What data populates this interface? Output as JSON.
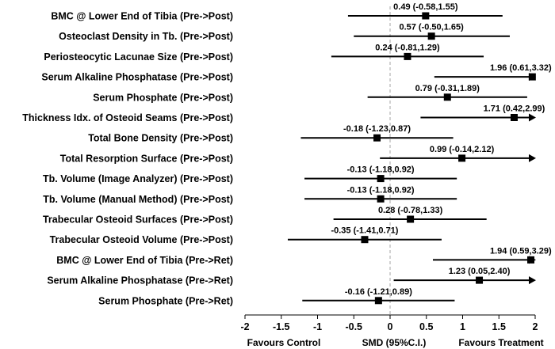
{
  "chart_data": {
    "type": "forest",
    "xlim": [
      -2,
      2
    ],
    "x_ticks": [
      -2,
      -1.5,
      -1,
      -0.5,
      0,
      0.5,
      1,
      1.5,
      2
    ],
    "tick_labels": [
      "-2",
      "-1.5",
      "-1",
      "-0.5",
      "0",
      "0.5",
      "1",
      "1.5",
      "2"
    ],
    "null_line": 0,
    "xlabel": "SMD (95%C.I.)",
    "left_caption": "Favours Control",
    "right_caption": "Favours Treatment",
    "rows": [
      {
        "label": "BMC @ Lower End of Tibia (Pre->Post)",
        "est": 0.49,
        "lo": -0.58,
        "hi": 1.55,
        "text": "0.49 (-0.58,1.55)",
        "arrow": false
      },
      {
        "label": "Osteoclast Density in Tb. (Pre->Post)",
        "est": 0.57,
        "lo": -0.5,
        "hi": 1.65,
        "text": "0.57 (-0.50,1.65)",
        "arrow": false
      },
      {
        "label": "Periosteocytic Lacunae Size (Pre->Post)",
        "est": 0.24,
        "lo": -0.81,
        "hi": 1.29,
        "text": "0.24 (-0.81,1.29)",
        "arrow": false
      },
      {
        "label": "Serum Alkaline Phosphatase (Pre->Post)",
        "est": 1.96,
        "lo": 0.61,
        "hi": 3.32,
        "text": "1.96 (0.61,3.32)",
        "arrow": true
      },
      {
        "label": "Serum Phosphate (Pre->Post)",
        "est": 0.79,
        "lo": -0.31,
        "hi": 1.89,
        "text": "0.79 (-0.31,1.89)",
        "arrow": false
      },
      {
        "label": "Thickness Idx. of Osteoid Seams (Pre->Post)",
        "est": 1.71,
        "lo": 0.42,
        "hi": 2.99,
        "text": "1.71 (0.42,2.99)",
        "arrow": true
      },
      {
        "label": "Total Bone Density (Pre->Post)",
        "est": -0.18,
        "lo": -1.23,
        "hi": 0.87,
        "text": "-0.18 (-1.23,0.87)",
        "arrow": false
      },
      {
        "label": "Total Resorption Surface (Pre->Post)",
        "est": 0.99,
        "lo": -0.14,
        "hi": 2.12,
        "text": "0.99 (-0.14,2.12)",
        "arrow": true
      },
      {
        "label": "Tb. Volume (Image Analyzer) (Pre->Post)",
        "est": -0.13,
        "lo": -1.18,
        "hi": 0.92,
        "text": "-0.13 (-1.18,0.92)",
        "arrow": false
      },
      {
        "label": "Tb. Volume (Manual Method) (Pre->Post)",
        "est": -0.13,
        "lo": -1.18,
        "hi": 0.92,
        "text": "-0.13 (-1.18,0.92)",
        "arrow": false
      },
      {
        "label": "Trabecular Osteoid Surfaces (Pre->Post)",
        "est": 0.28,
        "lo": -0.78,
        "hi": 1.33,
        "text": "0.28 (-0.78,1.33)",
        "arrow": false
      },
      {
        "label": "Trabecular Osteoid Volume (Pre->Post)",
        "est": -0.35,
        "lo": -1.41,
        "hi": 0.71,
        "text": "-0.35 (-1.41,0.71)",
        "arrow": false
      },
      {
        "label": "BMC @ Lower End of Tibia (Pre->Ret)",
        "est": 1.94,
        "lo": 0.59,
        "hi": 3.29,
        "text": "1.94 (0.59,3.29)",
        "arrow": true
      },
      {
        "label": "Serum Alkaline Phosphatase (Pre->Ret)",
        "est": 1.23,
        "lo": 0.05,
        "hi": 2.4,
        "text": "1.23 (0.05,2.40)",
        "arrow": true
      },
      {
        "label": "Serum Phosphate (Pre->Ret)",
        "est": -0.16,
        "lo": -1.21,
        "hi": 0.89,
        "text": "-0.16 (-1.21,0.89)",
        "arrow": false
      }
    ],
    "colors": {
      "marks": "#000000",
      "null_line": "#a6a6a6",
      "text": "#000000"
    }
  }
}
